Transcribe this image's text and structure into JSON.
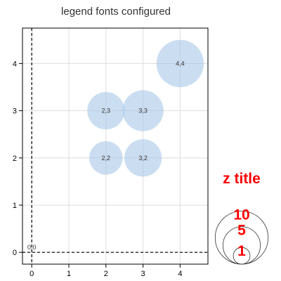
{
  "chart_data": {
    "type": "scatter",
    "subtype": "bubble",
    "title": "legend fonts configured",
    "xlabel": "",
    "ylabel": "",
    "xlim": [
      -0.25,
      4.75
    ],
    "ylim": [
      -0.25,
      4.75
    ],
    "x_ticks": [
      0,
      1,
      2,
      3,
      4
    ],
    "y_ticks": [
      0,
      1,
      2,
      3,
      4
    ],
    "grid": true,
    "reference_lines": {
      "x": 0,
      "y": 0,
      "style": "dashed"
    },
    "bubble_color": "#a8c8e8",
    "points": [
      {
        "x": 0,
        "y": 0,
        "z": 0,
        "label": "0,0"
      },
      {
        "x": 2,
        "y": 2,
        "z": 4,
        "label": "2,2"
      },
      {
        "x": 3,
        "y": 2,
        "z": 5,
        "label": "3,2"
      },
      {
        "x": 2,
        "y": 3,
        "z": 5,
        "label": "2,3"
      },
      {
        "x": 3,
        "y": 3,
        "z": 6,
        "label": "3,3"
      },
      {
        "x": 4,
        "y": 4,
        "z": 8,
        "label": "4,4"
      }
    ],
    "size_legend": {
      "title": "z title",
      "values": [
        10,
        5,
        1
      ],
      "font_color": "#ff0000",
      "placement": "right"
    }
  }
}
